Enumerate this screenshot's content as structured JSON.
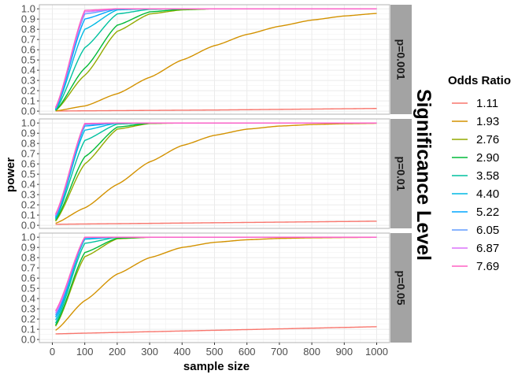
{
  "chart_data": {
    "type": "line",
    "xlabel": "sample size",
    "ylabel": "power",
    "facet_title": "Significance Level",
    "x_ticks": [
      0,
      100,
      200,
      300,
      400,
      500,
      600,
      700,
      800,
      900,
      1000
    ],
    "y_ticks": [
      "0.0",
      "0.1",
      "0.2",
      "0.3",
      "0.4",
      "0.5",
      "0.6",
      "0.7",
      "0.8",
      "0.9",
      "1.0"
    ],
    "xlim": [
      -40,
      1040
    ],
    "ylim": [
      -0.03,
      1.04
    ],
    "x_start": 10,
    "x_end": 1000,
    "legend": {
      "title": "Odds Ratio",
      "entries": [
        "1.11",
        "1.93",
        "2.76",
        "2.90",
        "3.58",
        "4.40",
        "5.22",
        "6.05",
        "6.87",
        "7.69"
      ],
      "colors": [
        "#F8766D",
        "#D39200",
        "#93AA00",
        "#00BA38",
        "#00C19F",
        "#00B9E3",
        "#00A5FF",
        "#619CFF",
        "#DB72FB",
        "#FF61C3"
      ]
    },
    "panels": [
      {
        "strip": "p=0.001",
        "x": [
          10,
          100,
          200,
          300,
          400,
          500,
          600,
          700,
          800,
          900,
          1000
        ],
        "series": [
          {
            "name": "1.11",
            "values": [
              0.001,
              0.003,
              0.005,
              0.007,
              0.009,
              0.011,
              0.014,
              0.017,
              0.02,
              0.023,
              0.026
            ]
          },
          {
            "name": "1.93",
            "values": [
              0.002,
              0.05,
              0.17,
              0.33,
              0.5,
              0.64,
              0.75,
              0.83,
              0.89,
              0.93,
              0.955
            ]
          },
          {
            "name": "2.76",
            "values": [
              0.005,
              0.35,
              0.78,
              0.95,
              0.99,
              1.0,
              1.0,
              1.0,
              1.0,
              1.0,
              1.0
            ]
          },
          {
            "name": "2.90",
            "values": [
              0.006,
              0.42,
              0.84,
              0.97,
              0.995,
              1.0,
              1.0,
              1.0,
              1.0,
              1.0,
              1.0
            ]
          },
          {
            "name": "3.58",
            "values": [
              0.01,
              0.62,
              0.95,
              0.995,
              1.0,
              1.0,
              1.0,
              1.0,
              1.0,
              1.0,
              1.0
            ]
          },
          {
            "name": "4.40",
            "values": [
              0.015,
              0.8,
              0.99,
              1.0,
              1.0,
              1.0,
              1.0,
              1.0,
              1.0,
              1.0,
              1.0
            ]
          },
          {
            "name": "5.22",
            "values": [
              0.02,
              0.9,
              0.998,
              1.0,
              1.0,
              1.0,
              1.0,
              1.0,
              1.0,
              1.0,
              1.0
            ]
          },
          {
            "name": "6.05",
            "values": [
              0.025,
              0.95,
              1.0,
              1.0,
              1.0,
              1.0,
              1.0,
              1.0,
              1.0,
              1.0,
              1.0
            ]
          },
          {
            "name": "6.87",
            "values": [
              0.03,
              0.97,
              1.0,
              1.0,
              1.0,
              1.0,
              1.0,
              1.0,
              1.0,
              1.0,
              1.0
            ]
          },
          {
            "name": "7.69",
            "values": [
              0.035,
              0.985,
              1.0,
              1.0,
              1.0,
              1.0,
              1.0,
              1.0,
              1.0,
              1.0,
              1.0
            ]
          }
        ]
      },
      {
        "strip": "p=0.01",
        "x": [
          10,
          100,
          200,
          300,
          400,
          500,
          600,
          700,
          800,
          900,
          1000
        ],
        "series": [
          {
            "name": "1.11",
            "values": [
              0.01,
              0.013,
              0.016,
              0.019,
              0.022,
              0.025,
              0.028,
              0.031,
              0.034,
              0.037,
              0.04
            ]
          },
          {
            "name": "1.93",
            "values": [
              0.02,
              0.17,
              0.4,
              0.62,
              0.78,
              0.88,
              0.94,
              0.97,
              0.985,
              0.993,
              0.997
            ]
          },
          {
            "name": "2.76",
            "values": [
              0.04,
              0.6,
              0.94,
              0.995,
              1.0,
              1.0,
              1.0,
              1.0,
              1.0,
              1.0,
              1.0
            ]
          },
          {
            "name": "2.90",
            "values": [
              0.05,
              0.67,
              0.96,
              0.998,
              1.0,
              1.0,
              1.0,
              1.0,
              1.0,
              1.0,
              1.0
            ]
          },
          {
            "name": "3.58",
            "values": [
              0.06,
              0.83,
              0.99,
              1.0,
              1.0,
              1.0,
              1.0,
              1.0,
              1.0,
              1.0,
              1.0
            ]
          },
          {
            "name": "4.40",
            "values": [
              0.07,
              0.93,
              0.999,
              1.0,
              1.0,
              1.0,
              1.0,
              1.0,
              1.0,
              1.0,
              1.0
            ]
          },
          {
            "name": "5.22",
            "values": [
              0.08,
              0.97,
              1.0,
              1.0,
              1.0,
              1.0,
              1.0,
              1.0,
              1.0,
              1.0,
              1.0
            ]
          },
          {
            "name": "6.05",
            "values": [
              0.09,
              0.985,
              1.0,
              1.0,
              1.0,
              1.0,
              1.0,
              1.0,
              1.0,
              1.0,
              1.0
            ]
          },
          {
            "name": "6.87",
            "values": [
              0.1,
              0.993,
              1.0,
              1.0,
              1.0,
              1.0,
              1.0,
              1.0,
              1.0,
              1.0,
              1.0
            ]
          },
          {
            "name": "7.69",
            "values": [
              0.11,
              0.996,
              1.0,
              1.0,
              1.0,
              1.0,
              1.0,
              1.0,
              1.0,
              1.0,
              1.0
            ]
          }
        ]
      },
      {
        "strip": "p=0.05",
        "x": [
          10,
          100,
          200,
          300,
          400,
          500,
          600,
          700,
          800,
          900,
          1000
        ],
        "series": [
          {
            "name": "1.11",
            "values": [
              0.055,
              0.062,
              0.069,
              0.076,
              0.083,
              0.09,
              0.097,
              0.104,
              0.111,
              0.118,
              0.125
            ]
          },
          {
            "name": "1.93",
            "values": [
              0.09,
              0.38,
              0.64,
              0.8,
              0.9,
              0.95,
              0.975,
              0.988,
              0.994,
              0.997,
              0.999
            ]
          },
          {
            "name": "2.76",
            "values": [
              0.13,
              0.81,
              0.985,
              0.999,
              1.0,
              1.0,
              1.0,
              1.0,
              1.0,
              1.0,
              1.0
            ]
          },
          {
            "name": "2.90",
            "values": [
              0.14,
              0.85,
              0.99,
              1.0,
              1.0,
              1.0,
              1.0,
              1.0,
              1.0,
              1.0,
              1.0
            ]
          },
          {
            "name": "3.58",
            "values": [
              0.16,
              0.94,
              0.999,
              1.0,
              1.0,
              1.0,
              1.0,
              1.0,
              1.0,
              1.0,
              1.0
            ]
          },
          {
            "name": "4.40",
            "values": [
              0.19,
              0.98,
              1.0,
              1.0,
              1.0,
              1.0,
              1.0,
              1.0,
              1.0,
              1.0,
              1.0
            ]
          },
          {
            "name": "5.22",
            "values": [
              0.22,
              0.993,
              1.0,
              1.0,
              1.0,
              1.0,
              1.0,
              1.0,
              1.0,
              1.0,
              1.0
            ]
          },
          {
            "name": "6.05",
            "values": [
              0.24,
              0.997,
              1.0,
              1.0,
              1.0,
              1.0,
              1.0,
              1.0,
              1.0,
              1.0,
              1.0
            ]
          },
          {
            "name": "6.87",
            "values": [
              0.26,
              0.999,
              1.0,
              1.0,
              1.0,
              1.0,
              1.0,
              1.0,
              1.0,
              1.0,
              1.0
            ]
          },
          {
            "name": "7.69",
            "values": [
              0.28,
              1.0,
              1.0,
              1.0,
              1.0,
              1.0,
              1.0,
              1.0,
              1.0,
              1.0,
              1.0
            ]
          }
        ]
      }
    ]
  }
}
